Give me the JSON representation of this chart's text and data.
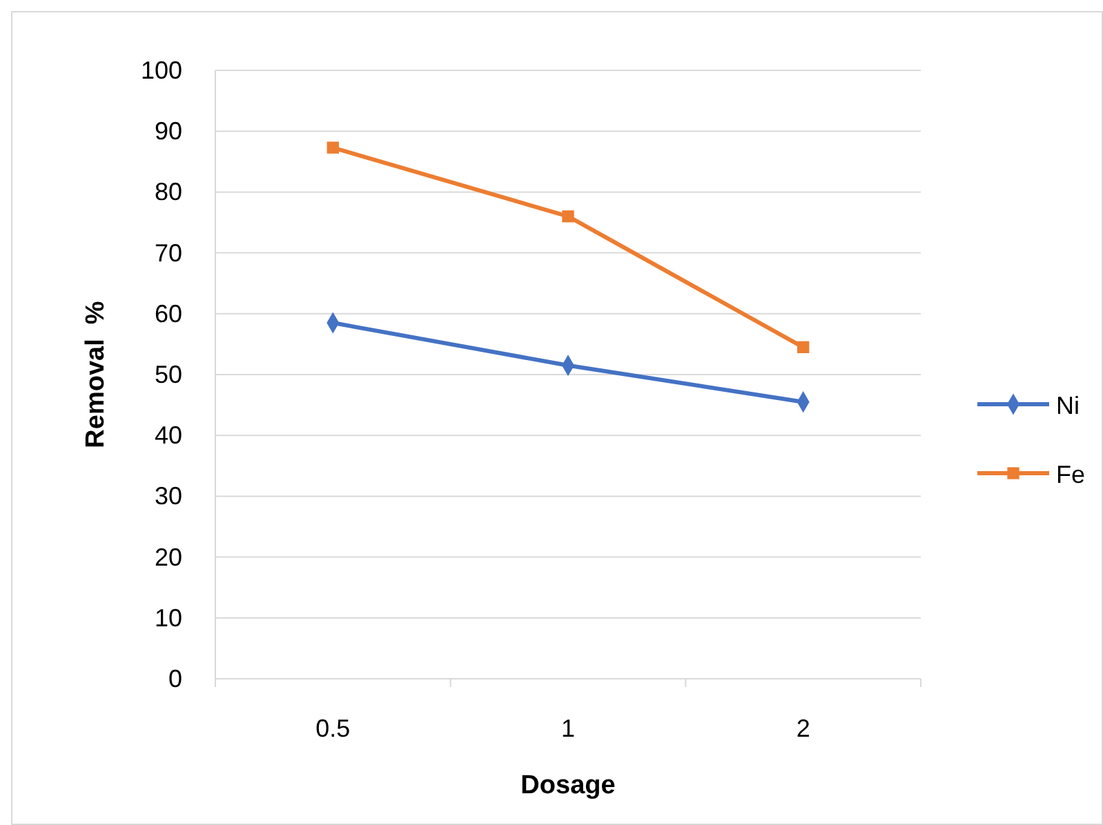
{
  "chart_data": {
    "type": "line",
    "xlabel": "Dosage",
    "ylabel": "Removal  %",
    "categories": [
      "0.5",
      "1",
      "2"
    ],
    "series": [
      {
        "name": "Ni",
        "color": "#4472c4",
        "marker": "diamond",
        "values": [
          58.5,
          51.5,
          45.5
        ]
      },
      {
        "name": "Fe",
        "color": "#ed7d31",
        "marker": "square",
        "values": [
          87.3,
          76.0,
          54.5
        ]
      }
    ],
    "ylim": [
      0,
      100
    ],
    "yticks": [
      0,
      10,
      20,
      30,
      40,
      50,
      60,
      70,
      80,
      90,
      100
    ],
    "grid": "y",
    "legend": "right",
    "line_style": "solid"
  }
}
